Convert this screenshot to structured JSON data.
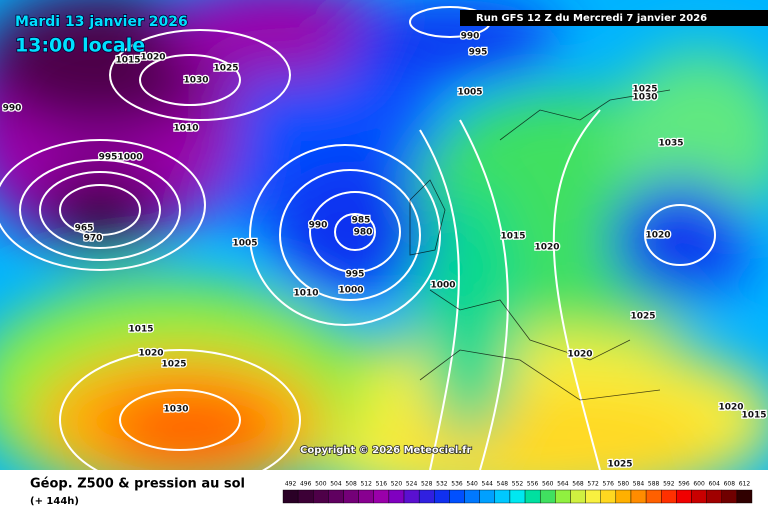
{
  "header": {
    "date": "Mardi 13 janvier 2026",
    "time": "13:00 locale",
    "run": "Run GFS 12 Z du Mercredi 7 janvier 2026"
  },
  "copyright": "Copyright © 2026 Meteociel.fr",
  "footer": {
    "title": "Géop. Z500 & pression au sol",
    "subtitle": "(+ 144h)"
  },
  "isobar_labels": [
    "990",
    "1015",
    "1020",
    "1030",
    "1025",
    "1010",
    "995",
    "1000",
    "965",
    "970",
    "990",
    "985",
    "980",
    "995",
    "1000",
    "1005",
    "1010",
    "1015",
    "1020",
    "1025",
    "1030",
    "1000",
    "1015",
    "1020",
    "1020",
    "1025",
    "1020",
    "1035",
    "1025",
    "1030",
    "1005",
    "990",
    "995",
    "1020",
    "1015",
    "1025"
  ],
  "scale": {
    "values": [
      492,
      496,
      500,
      504,
      508,
      512,
      516,
      520,
      524,
      528,
      532,
      536,
      540,
      544,
      548,
      552,
      556,
      560,
      564,
      568,
      572,
      576,
      580,
      584,
      588,
      592,
      596,
      600,
      604,
      608,
      612
    ],
    "colors": [
      "#2a0026",
      "#3c0036",
      "#4e0048",
      "#600060",
      "#740078",
      "#880090",
      "#9a00aa",
      "#8000c0",
      "#5a10d0",
      "#3020e0",
      "#1030f0",
      "#0050ff",
      "#0078ff",
      "#00a0ff",
      "#00c8ff",
      "#00e8f0",
      "#00e0a0",
      "#40e060",
      "#90f040",
      "#d0f040",
      "#f8f040",
      "#ffd820",
      "#ffb000",
      "#ff8c00",
      "#ff6000",
      "#ff3000",
      "#f00000",
      "#c80000",
      "#a00000",
      "#700000",
      "#300000"
    ]
  }
}
